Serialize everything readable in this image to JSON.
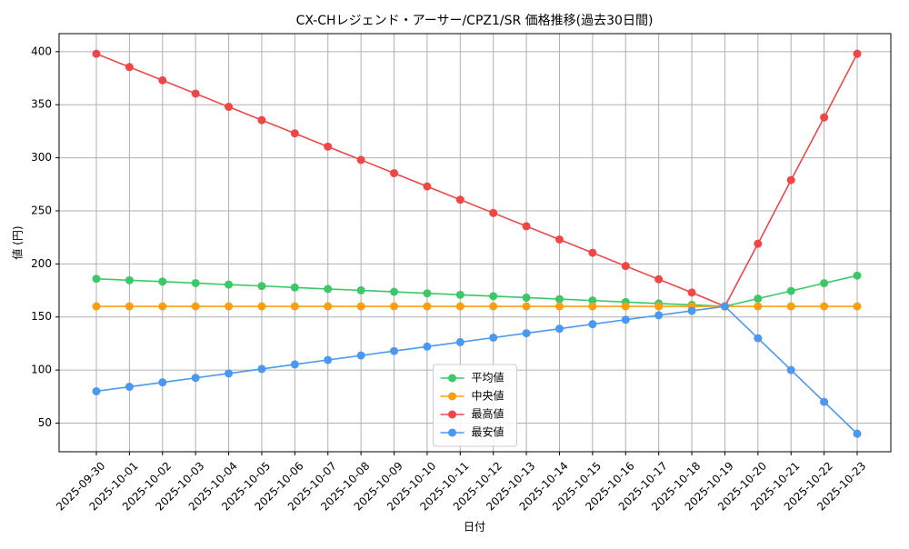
{
  "chart_data": {
    "type": "line",
    "title": "CX-CHレジェンド・アーサー/CPZ1/SR 価格推移(過去30日間)",
    "x_label": "日付",
    "y_label": "値 (円)",
    "categories": [
      "2025-09-30",
      "2025-10-01",
      "2025-10-02",
      "2025-10-03",
      "2025-10-04",
      "2025-10-05",
      "2025-10-06",
      "2025-10-07",
      "2025-10-08",
      "2025-10-09",
      "2025-10-10",
      "2025-10-11",
      "2025-10-12",
      "2025-10-13",
      "2025-10-14",
      "2025-10-15",
      "2025-10-16",
      "2025-10-17",
      "2025-10-18",
      "2025-10-19",
      "2025-10-20",
      "2025-10-21",
      "2025-10-22",
      "2025-10-23"
    ],
    "series": [
      {
        "name": "平均値",
        "color": "#3cc867",
        "values": [
          186,
          184.6,
          183.3,
          181.9,
          180.5,
          179.2,
          177.8,
          176.4,
          175.1,
          173.7,
          172.3,
          170.9,
          169.6,
          168.2,
          166.8,
          165.5,
          164.1,
          162.7,
          161.4,
          160,
          167.3,
          174.5,
          181.8,
          189
        ]
      },
      {
        "name": "中央値",
        "color": "#f8a012",
        "values": [
          160,
          160,
          160,
          160,
          160,
          160,
          160,
          160,
          160,
          160,
          160,
          160,
          160,
          160,
          160,
          160,
          160,
          160,
          160,
          160,
          160,
          160,
          160,
          160
        ]
      },
      {
        "name": "最高値",
        "color": "#ef4747",
        "values": [
          398,
          385.5,
          373,
          360.5,
          348,
          335.5,
          323,
          310.5,
          298,
          285.5,
          273,
          260.5,
          248,
          235.5,
          223,
          210.5,
          198,
          185.5,
          173,
          160,
          219,
          279,
          338,
          398
        ]
      },
      {
        "name": "最安値",
        "color": "#4a98f0",
        "values": [
          80,
          84.2,
          88.4,
          92.6,
          96.8,
          101,
          105.3,
          109.5,
          113.7,
          117.9,
          122.1,
          126.3,
          130.5,
          134.7,
          138.9,
          143.2,
          147.4,
          151.6,
          155.8,
          160,
          130,
          100,
          70,
          40
        ]
      }
    ],
    "ylim": [
      23,
      417
    ],
    "yticks": [
      50,
      100,
      150,
      200,
      250,
      300,
      350,
      400
    ],
    "grid": true,
    "legend": "lower center"
  }
}
